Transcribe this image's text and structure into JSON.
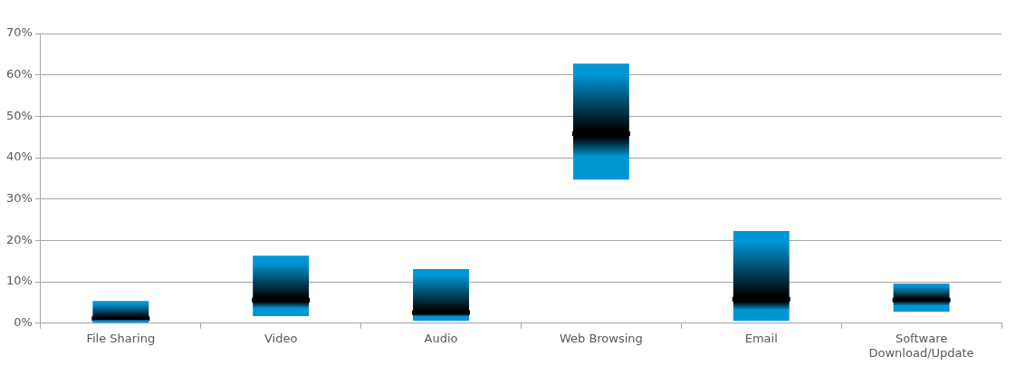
{
  "chart_data": {
    "type": "box",
    "categories": [
      "File Sharing",
      "Video",
      "Audio",
      "Web Browsing",
      "Email",
      "Software Download/Update"
    ],
    "series": [
      {
        "color": "#0096d6",
        "boxes": [
          {
            "low": 0,
            "q1": 0,
            "median": 1.1,
            "q3": 5.4,
            "high": 5.4
          },
          {
            "low": 1.7,
            "q1": 1.7,
            "median": 5.6,
            "q3": 16.3,
            "high": 16.3
          },
          {
            "low": 0.6,
            "q1": 0.6,
            "median": 2.6,
            "q3": 13.1,
            "high": 13.1
          },
          {
            "low": 34.7,
            "q1": 34.7,
            "median": 45.8,
            "q3": 62.7,
            "high": 62.7
          },
          {
            "low": 0.6,
            "q1": 0.6,
            "median": 5.8,
            "q3": 22.3,
            "high": 22.3
          },
          {
            "low": 2.8,
            "q1": 2.8,
            "median": 5.6,
            "q3": 9.6,
            "high": 9.6
          }
        ]
      }
    ],
    "ylim": [
      0,
      70
    ],
    "yticks": [
      {
        "value": 0,
        "label": "0%"
      },
      {
        "value": 10,
        "label": "10%"
      },
      {
        "value": 20,
        "label": "20%"
      },
      {
        "value": 30,
        "label": "30%"
      },
      {
        "value": 40,
        "label": "40%"
      },
      {
        "value": 50,
        "label": "50%"
      },
      {
        "value": 60,
        "label": "60%"
      },
      {
        "value": 70,
        "label": "70%"
      }
    ],
    "grid": "y",
    "legend": false
  }
}
